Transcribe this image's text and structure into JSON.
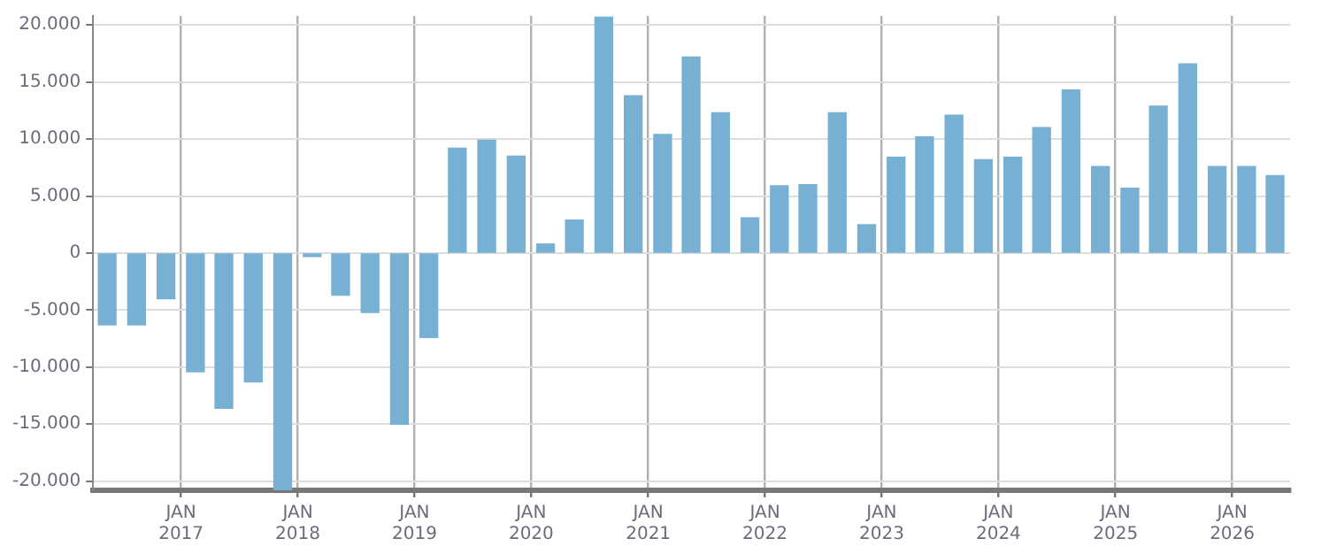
{
  "chart_data": {
    "type": "bar",
    "x": [
      "2016-05-15",
      "2016-08-15",
      "2016-11-15",
      "2017-02-15",
      "2017-05-15",
      "2017-08-15",
      "2017-11-15",
      "2018-02-15",
      "2018-05-15",
      "2018-08-15",
      "2018-11-15",
      "2019-02-15",
      "2019-05-15",
      "2019-08-15",
      "2019-11-15",
      "2020-02-15",
      "2020-05-15",
      "2020-08-15",
      "2020-11-15",
      "2021-02-15",
      "2021-05-15",
      "2021-08-15",
      "2021-11-15",
      "2022-02-15",
      "2022-05-15",
      "2022-08-15",
      "2022-11-15",
      "2023-02-15",
      "2023-05-15",
      "2023-08-15",
      "2023-11-15",
      "2024-02-15",
      "2024-05-15",
      "2024-08-15",
      "2024-11-15",
      "2025-02-15",
      "2025-05-15",
      "2025-08-15",
      "2025-11-15",
      "2026-02-15",
      "2026-05-15"
    ],
    "values": [
      -6300,
      -6300,
      -4000,
      -10400,
      -13600,
      -11300,
      -20800,
      -300,
      -3700,
      -5200,
      -15000,
      -7400,
      9200,
      9900,
      8500,
      800,
      2900,
      20700,
      13800,
      10400,
      17200,
      12300,
      3100,
      5900,
      6000,
      12300,
      2500,
      8400,
      10200,
      12100,
      8200,
      8400,
      11000,
      14300,
      7600,
      5700,
      12900,
      16600,
      7600,
      7600,
      6800
    ],
    "color": "#77b0d3",
    "xlim": [
      "2016-04",
      "2026-07"
    ],
    "xticks": [
      {
        "value": "2017-01",
        "label": "JAN 2017"
      },
      {
        "value": "2018-01",
        "label": "JAN 2018"
      },
      {
        "value": "2019-01",
        "label": "JAN 2019"
      },
      {
        "value": "2020-01",
        "label": "JAN 2020"
      },
      {
        "value": "2021-01",
        "label": "JAN 2021"
      },
      {
        "value": "2022-01",
        "label": "JAN 2022"
      },
      {
        "value": "2023-01",
        "label": "JAN 2023"
      },
      {
        "value": "2024-01",
        "label": "JAN 2024"
      },
      {
        "value": "2025-01",
        "label": "JAN 2025"
      },
      {
        "value": "2026-01",
        "label": "JAN 2026"
      }
    ],
    "ylim": [
      -20800,
      20800
    ],
    "yticks": [
      {
        "value": -20000,
        "label": "-20.000"
      },
      {
        "value": -15000,
        "label": "-15.000"
      },
      {
        "value": -10000,
        "label": "-10.000"
      },
      {
        "value": -5000,
        "label": "-5.000"
      },
      0,
      {
        "value": 5000,
        "label": "5.000"
      },
      {
        "value": 10000,
        "label": "10.000"
      },
      {
        "value": 15000,
        "label": "15.000"
      },
      {
        "value": 20000,
        "label": "20.000"
      }
    ],
    "grid": true,
    "legend": false
  }
}
